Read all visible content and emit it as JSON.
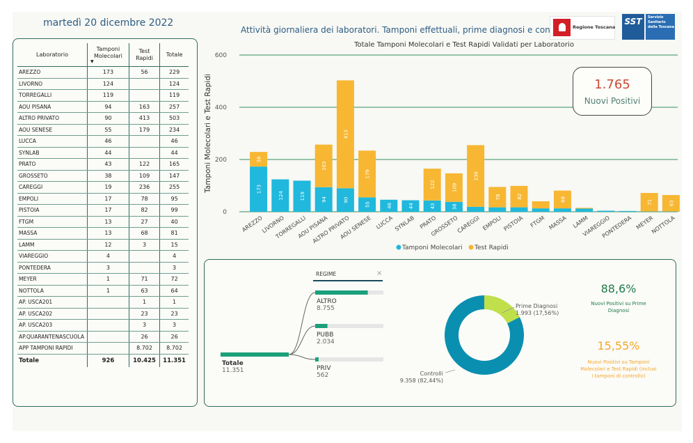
{
  "header": {
    "date": "martedì 20 dicembre 2022",
    "report_title": "Attività giornaliera dei laboratori. Tamponi effettuali, prime diagnosi e controlli",
    "logo_regione_text": "Regione Toscana",
    "logo_sst_mark": "SST",
    "logo_sst_text": "Servizio Sanitario della Toscana"
  },
  "table": {
    "headers": [
      "Laboratorio",
      "Tamponi Molecolari",
      "Test Rapidi",
      "Totale"
    ],
    "rows": [
      [
        "AREZZO",
        "173",
        "56",
        "229"
      ],
      [
        "LIVORNO",
        "124",
        "",
        "124"
      ],
      [
        "TORREGALLI",
        "119",
        "",
        "119"
      ],
      [
        "AOU PISANA",
        "94",
        "163",
        "257"
      ],
      [
        "ALTRO PRIVATO",
        "90",
        "413",
        "503"
      ],
      [
        "AOU SENESE",
        "55",
        "179",
        "234"
      ],
      [
        "LUCCA",
        "46",
        "",
        "46"
      ],
      [
        "SYNLAB",
        "44",
        "",
        "44"
      ],
      [
        "PRATO",
        "43",
        "122",
        "165"
      ],
      [
        "GROSSETO",
        "38",
        "109",
        "147"
      ],
      [
        "CAREGGI",
        "19",
        "236",
        "255"
      ],
      [
        "EMPOLI",
        "17",
        "78",
        "95"
      ],
      [
        "PISTOIA",
        "17",
        "82",
        "99"
      ],
      [
        "FTGM",
        "13",
        "27",
        "40"
      ],
      [
        "MASSA",
        "13",
        "68",
        "81"
      ],
      [
        "LAMM",
        "12",
        "3",
        "15"
      ],
      [
        "VIAREGGIO",
        "4",
        "",
        "4"
      ],
      [
        "PONTEDERA",
        "3",
        "",
        "3"
      ],
      [
        "MEYER",
        "1",
        "71",
        "72"
      ],
      [
        "NOTTOLA",
        "1",
        "63",
        "64"
      ],
      [
        "AP. USCA201",
        "",
        "1",
        "1"
      ],
      [
        "AP. USCA202",
        "",
        "23",
        "23"
      ],
      [
        "AP. USCA203",
        "",
        "3",
        "3"
      ],
      [
        "AP.QUARANTENASCUOLA",
        "",
        "26",
        "26"
      ],
      [
        "APP TAMPONI RAPIDI",
        "",
        "8.702",
        "8.702"
      ]
    ],
    "total": [
      "Totale",
      "926",
      "10.425",
      "11.351"
    ]
  },
  "kpi": {
    "nuovi_positivi_value": "1.765",
    "nuovi_positivi_label": "Nuovi Positivi",
    "pct_prime_diagnosi": "88,6%",
    "pct_prime_diagnosi_label": "Nuovi Positivi su Prime Diagnosi",
    "pct_tamponi": "15,55%",
    "pct_tamponi_label": "Nuovi Positivi su Tamponi Molecolari e Test Rapidi (inclusi i tamponi di controllo)"
  },
  "decomposition": {
    "filter_label": "REGIME",
    "close_glyph": "×",
    "root": {
      "label": "Totale",
      "value": "11.351"
    },
    "branches": [
      {
        "label": "ALTRO",
        "value": "8.755",
        "fraction": 0.7713
      },
      {
        "label": "PUBB",
        "value": "2.034",
        "fraction": 0.1792
      },
      {
        "label": "PRIV",
        "value": "562",
        "fraction": 0.0495
      }
    ]
  },
  "colors": {
    "molecolari": "#20b8dc",
    "rapidi": "#f7b733",
    "gridline": "#2f8f5e",
    "accent_green": "#1f7a4a",
    "accent_orange": "#f2a72a",
    "donut_controlli": "#0b8fb0",
    "donut_prime": "#bfe04a",
    "tree_bar": "#1aa07a"
  },
  "chart_data": [
    {
      "type": "bar",
      "stacked": true,
      "title": "Totale Tamponi Molecolari e Test Rapidi Validati per Laboratorio",
      "xlabel": "",
      "ylabel": "Tamponi Molecolari e Test Rapidi",
      "ylim": [
        0,
        600
      ],
      "yticks": [
        "0",
        "200",
        "400",
        "600"
      ],
      "grid": true,
      "legend": "bottom",
      "categories": [
        "AREZZO",
        "LIVORNO",
        "TORREGALLI",
        "AOU PISANA",
        "ALTRO PRIVATO",
        "AOU SENESE",
        "LUCCA",
        "SYNLAB",
        "PRATO",
        "GROSSETO",
        "CAREGGI",
        "EMPOLI",
        "PISTOIA",
        "FTGM",
        "MASSA",
        "LAMM",
        "VIAREGGIO",
        "PONTEDERA",
        "MEYER",
        "NOTTOLA"
      ],
      "series": [
        {
          "name": "Tamponi Molecolari",
          "values": [
            173,
            124,
            119,
            94,
            90,
            55,
            46,
            44,
            43,
            38,
            19,
            17,
            17,
            13,
            13,
            12,
            4,
            3,
            1,
            1
          ]
        },
        {
          "name": "Test Rapidi",
          "values": [
            56,
            0,
            0,
            163,
            413,
            179,
            0,
            0,
            122,
            109,
            236,
            78,
            82,
            27,
            68,
            3,
            0,
            0,
            71,
            63
          ]
        }
      ]
    },
    {
      "type": "pie",
      "donut": true,
      "labels": [
        "Prime Diagnosi",
        "Controlli"
      ],
      "values": [
        1993,
        9358
      ],
      "value_labels": [
        "1.993 (17,56%)",
        "9.358 (82,44%)"
      ]
    }
  ]
}
